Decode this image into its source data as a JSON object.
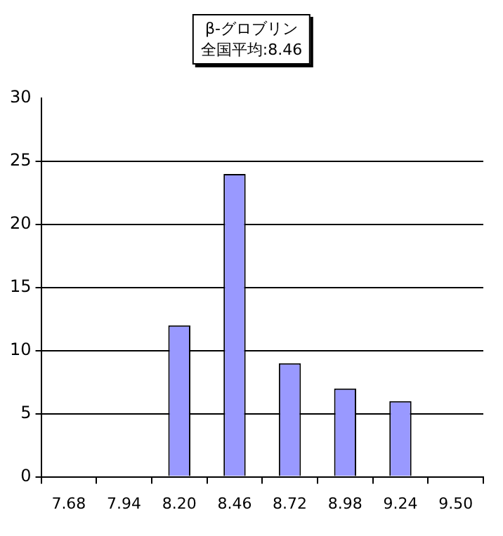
{
  "chart_data": {
    "type": "bar",
    "title": "β-グロブリン",
    "subtitle": "全国平均:8.46",
    "categories": [
      "7.68",
      "7.94",
      "8.20",
      "8.46",
      "8.72",
      "8.98",
      "9.24",
      "9.50"
    ],
    "values": [
      0,
      0,
      12,
      24,
      9,
      7,
      6,
      0
    ],
    "color": "#9999ff",
    "ylim": [
      0,
      30
    ],
    "yticks": [
      0,
      5,
      10,
      15,
      20,
      25,
      30
    ],
    "grid": "y",
    "legend": false
  }
}
